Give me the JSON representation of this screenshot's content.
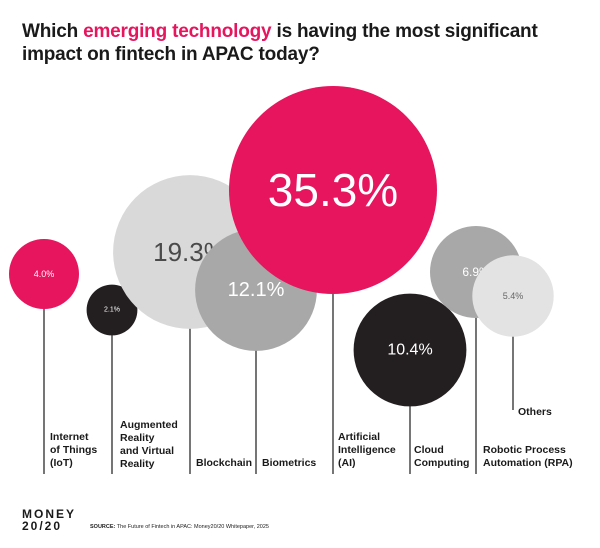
{
  "title": {
    "before": "Which ",
    "highlight": "emerging technology",
    "after": " is having the most significant impact on fintech in APAC today?"
  },
  "colors": {
    "accent": "#e6155e",
    "light_gray": "#d9d9d9",
    "mid_gray": "#a8a8a8",
    "dark": "#231f20",
    "pale_gray": "#e3e3e3"
  },
  "chart_data": {
    "type": "bubble",
    "unit": "%",
    "series": [
      {
        "label": "Internet of Things (IoT)",
        "label_lines": [
          "Internet",
          "of Things",
          "(IoT)"
        ],
        "value": 4.0,
        "display": "4.0%",
        "color": "#e6155e"
      },
      {
        "label": "Augmented Reality and Virtual Reality",
        "label_lines": [
          "Augmented",
          "Reality",
          "and Virtual",
          "Reality"
        ],
        "value": 2.1,
        "display": "2.1%",
        "color": "#231f20"
      },
      {
        "label": "Blockchain",
        "label_lines": [
          "Blockchain"
        ],
        "value": 19.3,
        "display": "19.3%",
        "color": "#d9d9d9"
      },
      {
        "label": "Biometrics",
        "label_lines": [
          "Biometrics"
        ],
        "value": 12.1,
        "display": "12.1%",
        "color": "#a8a8a8"
      },
      {
        "label": "Artificial Intelligence (AI)",
        "label_lines": [
          "Artificial",
          "Intelligence",
          "(AI)"
        ],
        "value": 35.3,
        "display": "35.3%",
        "color": "#e6155e"
      },
      {
        "label": "Cloud Computing",
        "label_lines": [
          "Cloud",
          "Computing"
        ],
        "value": 10.4,
        "display": "10.4%",
        "color": "#231f20"
      },
      {
        "label": "Robotic Process Automation (RPA)",
        "label_lines": [
          "Robotic Process",
          "Automation (RPA)"
        ],
        "value": 6.9,
        "display": "6.9%",
        "color": "#a8a8a8"
      },
      {
        "label": "Others",
        "label_lines": [
          "Others"
        ],
        "value": 5.4,
        "display": "5.4%",
        "color": "#e3e3e3"
      }
    ]
  },
  "footer": {
    "logo_line1": "MONEY",
    "logo_line2": "20/20",
    "source_label": "SOURCE:",
    "source_text": " The Future of Fintech in APAC: Money20/20 Whitepaper, 2025"
  }
}
